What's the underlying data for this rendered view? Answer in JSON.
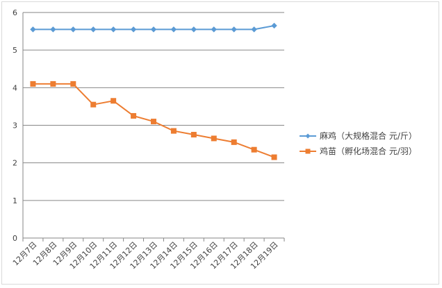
{
  "chart_data": {
    "type": "line",
    "categories": [
      "12月7日",
      "12月8日",
      "12月9日",
      "12月10日",
      "12月11日",
      "12月12日",
      "12月13日",
      "12月14日",
      "12月15日",
      "12月16日",
      "12月17日",
      "12月18日",
      "12月19日"
    ],
    "series": [
      {
        "name": "麻鸡（大规格混合 元/斤）",
        "color": "#5b9bd5",
        "marker": "diamond",
        "values": [
          5.55,
          5.55,
          5.55,
          5.55,
          5.55,
          5.55,
          5.55,
          5.55,
          5.55,
          5.55,
          5.55,
          5.55,
          5.65
        ]
      },
      {
        "name": "鸡苗（孵化场混合 元/羽）",
        "color": "#ed7d31",
        "marker": "square",
        "values": [
          4.1,
          4.1,
          4.1,
          3.55,
          3.65,
          3.25,
          3.1,
          2.85,
          2.75,
          2.65,
          2.55,
          2.35,
          2.15
        ]
      }
    ],
    "ylim": [
      0,
      6
    ],
    "yticks": [
      0,
      1,
      2,
      3,
      4,
      5,
      6
    ],
    "grid": true,
    "legend": "right"
  }
}
